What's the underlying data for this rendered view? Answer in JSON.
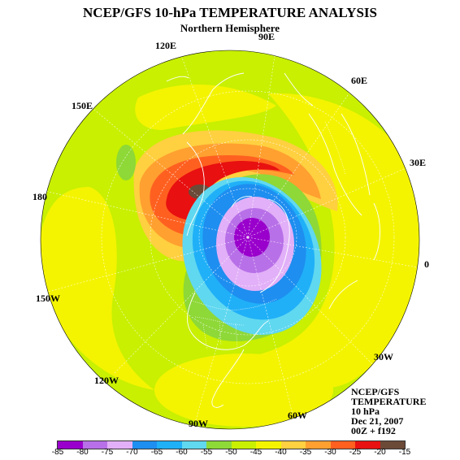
{
  "title": "NCEP/GFS 10-hPa TEMPERATURE ANALYSIS",
  "subtitle": "Northern Hemisphere",
  "longitudes": {
    "l90e": "90E",
    "l60e": "60E",
    "l30e": "30E",
    "l0": "0",
    "l30w": "30W",
    "l60w": "60W",
    "l90w": "90W",
    "l120w": "120W",
    "l150w": "150W",
    "l180": "180",
    "l150e": "150E",
    "l120e": "120E"
  },
  "info": {
    "line1": "NCEP/GFS",
    "line2": "TEMPERATURE",
    "line3": "10 hPa",
    "line4": "Dec 21, 2007",
    "line5": "00Z + f192"
  },
  "colorbar": {
    "labels": [
      "-85",
      "-80",
      "-75",
      "-70",
      "-65",
      "-60",
      "-55",
      "-50",
      "-45",
      "-40",
      "-35",
      "-30",
      "-25",
      "-20",
      "-15"
    ],
    "colors": [
      "#9a00cc",
      "#b870e8",
      "#e2b0f8",
      "#1e8ef0",
      "#20b0f8",
      "#60d8f0",
      "#8ed838",
      "#c8f000",
      "#f4f400",
      "#ffd040",
      "#ffa030",
      "#ff6020",
      "#e81010",
      "#6b4a38"
    ]
  },
  "colors": {
    "background_field": "#c8f000",
    "map_lines": "#ffffff"
  }
}
